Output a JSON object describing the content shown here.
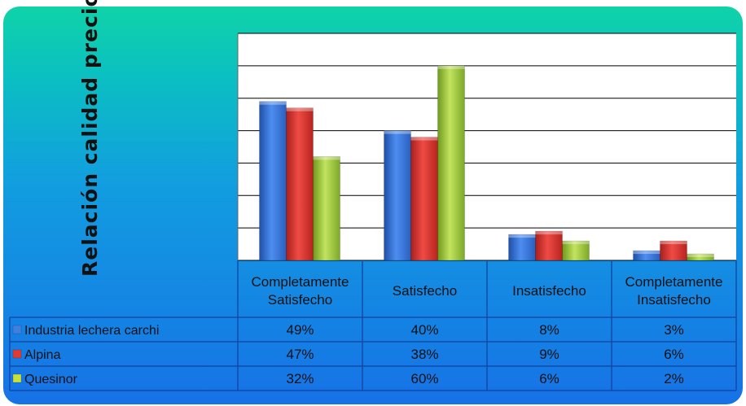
{
  "chart_data": {
    "type": "bar",
    "title": "",
    "ylabel": "Relación calidad precio",
    "xlabel": "",
    "ylim": [
      0,
      70
    ],
    "grid": true,
    "legend_placement": "data-table-left",
    "categories": [
      [
        "Completamente",
        "Satisfecho"
      ],
      [
        "Satisfecho"
      ],
      [
        "Insatisfecho"
      ],
      [
        "Completamente",
        "Insatisfecho"
      ]
    ],
    "series": [
      {
        "name": "Industria lechera carchi",
        "values": [
          49,
          40,
          8,
          3
        ],
        "labels": [
          "49%",
          "40%",
          "8%",
          "3%"
        ],
        "color": "#2f6fd6"
      },
      {
        "name": "Alpina",
        "values": [
          47,
          38,
          9,
          6
        ],
        "labels": [
          "47%",
          "38%",
          "9%",
          "6%"
        ],
        "color": "#d0312d"
      },
      {
        "name": "Quesinor",
        "values": [
          32,
          60,
          6,
          2
        ],
        "labels": [
          "32%",
          "60%",
          "6%",
          "2%"
        ],
        "color": "#9bc43a"
      }
    ]
  }
}
